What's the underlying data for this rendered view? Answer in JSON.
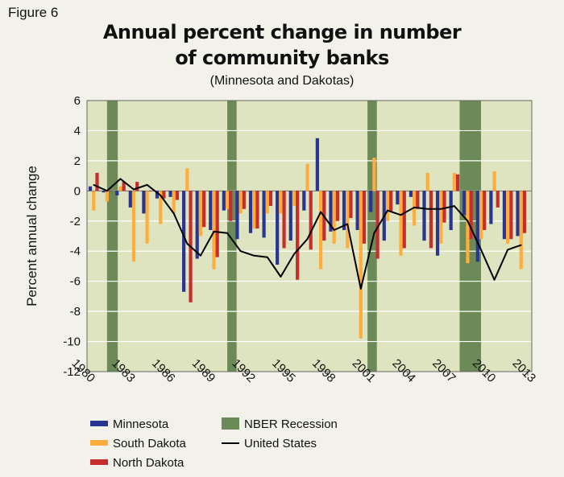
{
  "figure_label": "Figure 6",
  "chart_data": {
    "type": "bar",
    "title_line1": "Annual percent change in number",
    "title_line2": "of community banks",
    "subtitle": "(Minnesota and Dakotas)",
    "ylabel": "Percent annual change",
    "xlabel": "",
    "ylim": [
      -12,
      6
    ],
    "yticks": [
      6,
      4,
      2,
      0,
      -2,
      -4,
      -6,
      -8,
      -10,
      -12
    ],
    "xticks": [
      "1980",
      "1983",
      "1986",
      "1989",
      "1992",
      "1995",
      "1998",
      "2001",
      "2004",
      "2007",
      "2010",
      "2013"
    ],
    "years": [
      1980,
      1981,
      1982,
      1983,
      1984,
      1985,
      1986,
      1987,
      1988,
      1989,
      1990,
      1991,
      1992,
      1993,
      1994,
      1995,
      1996,
      1997,
      1998,
      1999,
      2000,
      2001,
      2002,
      2003,
      2004,
      2005,
      2006,
      2007,
      2008,
      2009,
      2010,
      2011,
      2012
    ],
    "colors": {
      "plot_bg": "#dde4bf",
      "recession": "#6b8a57",
      "minnesota": "#283593",
      "south_dakota": "#ffae3b",
      "north_dakota": "#c62d2d",
      "us": "#000000"
    },
    "series": [
      {
        "name": "Minnesota",
        "key": "minnesota",
        "values": [
          0.3,
          -0.1,
          -0.3,
          -1.1,
          -1.5,
          -0.5,
          -0.4,
          -6.7,
          -4.5,
          -2.6,
          -1.3,
          -3.2,
          -2.8,
          -3.1,
          -4.9,
          -3.3,
          -1.3,
          3.5,
          -2.7,
          -2.6,
          -2.6,
          -1.4,
          -3.3,
          -0.9,
          -0.4,
          -3.3,
          -4.3,
          -2.6,
          -1.6,
          -4.7,
          -2.2,
          -3.2,
          -3.0
        ]
      },
      {
        "name": "South Dakota",
        "key": "south_dakota",
        "values": [
          -1.3,
          -0.7,
          0.3,
          -4.7,
          -3.5,
          -2.2,
          -1.5,
          1.5,
          -3.0,
          -5.2,
          -1.2,
          -1.5,
          -2.5,
          -1.5,
          -1.5,
          -1.0,
          1.8,
          -5.2,
          -3.5,
          -3.8,
          -9.8,
          2.2,
          -2.0,
          -4.3,
          -2.3,
          1.2,
          -3.5,
          1.2,
          -4.8,
          -3.2,
          1.3,
          -3.5,
          -5.2
        ]
      },
      {
        "name": "North Dakota",
        "key": "north_dakota",
        "values": [
          1.2,
          0.0,
          0.6,
          0.6,
          0.0,
          -0.5,
          -0.6,
          -7.4,
          -2.4,
          -4.4,
          -2.0,
          -1.2,
          -2.5,
          -1.0,
          -3.8,
          -5.9,
          -3.9,
          -3.3,
          -2.0,
          -1.8,
          -3.5,
          -4.5,
          -1.4,
          -3.8,
          -1.2,
          -3.8,
          -2.1,
          1.1,
          -3.2,
          -2.6,
          -1.1,
          -3.2,
          -2.8
        ]
      },
      {
        "name": "United States",
        "key": "us",
        "type": "line",
        "values": [
          0.4,
          0.0,
          0.8,
          0.1,
          0.4,
          -0.3,
          -1.5,
          -3.5,
          -4.3,
          -2.7,
          -2.8,
          -4.0,
          -4.3,
          -4.4,
          -5.7,
          -4.2,
          -3.2,
          -1.4,
          -2.6,
          -2.2,
          -6.5,
          -2.8,
          -1.3,
          -1.6,
          -1.1,
          -1.2,
          -1.2,
          -1.0,
          -2.0,
          -3.9,
          -5.9,
          -3.9,
          -3.6
        ]
      }
    ],
    "recessions": [
      [
        1981.5,
        1982.3
      ],
      [
        1990.5,
        1991.2
      ],
      [
        2001.0,
        2001.7
      ],
      [
        2007.9,
        2009.5
      ]
    ],
    "legend": [
      {
        "label": "Minnesota",
        "key": "minnesota",
        "kind": "bar"
      },
      {
        "label": "South Dakota",
        "key": "south_dakota",
        "kind": "bar"
      },
      {
        "label": "North Dakota",
        "key": "north_dakota",
        "kind": "bar"
      },
      {
        "label": "NBER Recession",
        "key": "recession",
        "kind": "box"
      },
      {
        "label": "United States",
        "key": "us",
        "kind": "line"
      }
    ]
  }
}
